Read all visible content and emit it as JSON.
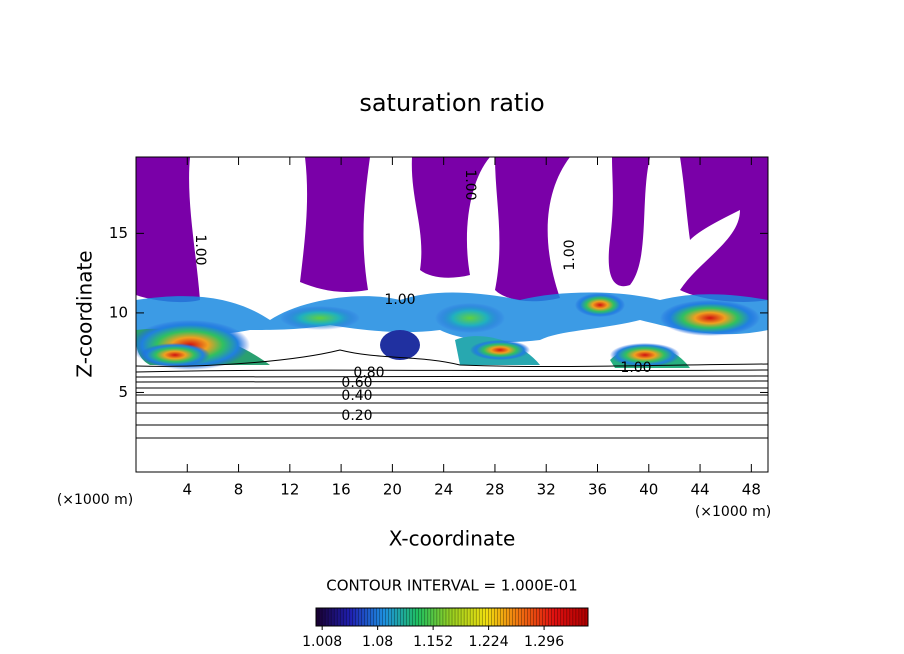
{
  "chart_data": {
    "type": "contour",
    "title": "saturation ratio",
    "x_label": "X-coordinate",
    "y_label": "Z-coordinate",
    "x_unit": "(×1000 m)",
    "y_unit": "(×1000 m)",
    "xlim": [
      0,
      49.3
    ],
    "ylim": [
      0,
      19.8
    ],
    "xticks": [
      4,
      8,
      12,
      16,
      20,
      24,
      28,
      32,
      36,
      40,
      44,
      48
    ],
    "yticks": [
      5,
      10,
      15
    ],
    "contour_labels": [
      "1.00",
      "1.00",
      "1.00",
      "1.00",
      "1.00",
      "0.80",
      "0.60",
      "0.40",
      "0.20"
    ],
    "contour_interval": "CONTOUR INTERVAL = 1.000E-01",
    "colorbar": {
      "clim": [
        1.0,
        1.353
      ],
      "ticks": [
        1.008,
        1.08,
        1.152,
        1.224,
        1.296
      ],
      "colors": [
        "#1a0030",
        "#1f1fb0",
        "#1e8fe0",
        "#20c060",
        "#9ad020",
        "#f0e010",
        "#f07010",
        "#e01010",
        "#b00000"
      ]
    }
  }
}
